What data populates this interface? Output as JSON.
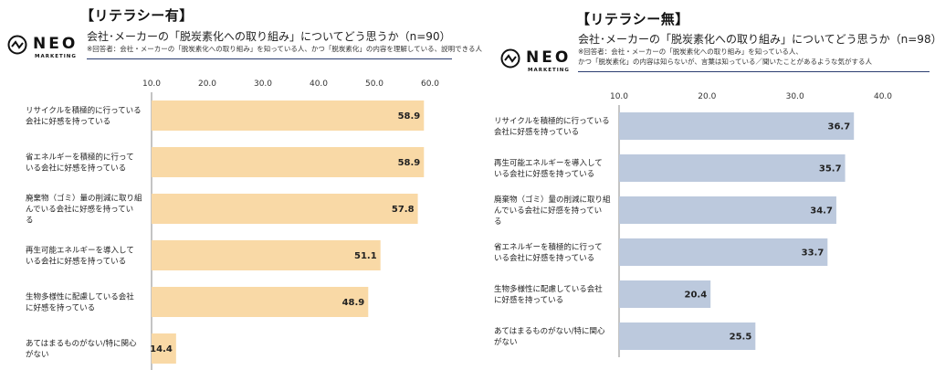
{
  "left": {
    "section_title": "【リテラシー有】",
    "question": "会社･メーカーの「脱炭素化への取り組み」についてどう思うか（n=90）",
    "note_lines": [
      "※回答者：会社・メーカーの「脱炭素化への取り組み」を知っている人、かつ「脱炭素化」の内容を理解している、説明できる人"
    ],
    "logo": {
      "brand": "NEO",
      "sub": "MARKETING"
    }
  },
  "right": {
    "section_title": "【リテラシー無】",
    "question": "会社･メーカーの「脱炭素化への取り組み」についてどう思うか（n=98）",
    "note_lines": [
      "※回答者：会社・メーカーの「脱炭素化への取り組み」を知っている人、",
      "かつ「脱炭素化」の内容は知らないが、言葉は知っている／聞いたことがあるような気がする人"
    ],
    "logo": {
      "brand": "NEO",
      "sub": "MARKETING"
    }
  },
  "colors": {
    "left_bar": "#f9d9a6",
    "right_bar": "#bcc9dd",
    "rule": "#2c3e70",
    "grid": "#e0e0e0"
  },
  "chart_data": [
    {
      "type": "bar",
      "orientation": "horizontal",
      "title": "【リテラシー有】",
      "categories": [
        "リサイクルを積極的に行っている会社に好感を持っている",
        "省エネルギーを積極的に行っている会社に好感を持っている",
        "廃棄物（ゴミ）量の削減に取り組んでいる会社に好感を持っている",
        "再生可能エネルギーを導入している会社に好感を持っている",
        "生物多様性に配慮している会社に好感を持っている",
        "あてはまるものがない/特に関心がない"
      ],
      "category_lines": [
        [
          "リサイクルを積極的に行っている",
          "会社に好感を持っている"
        ],
        [
          "省エネルギーを積極的に行って",
          "いる会社に好感を持っている"
        ],
        [
          "廃棄物（ゴミ）量の削減に取り組",
          "んでいる会社に好感を持ってい",
          "る"
        ],
        [
          "再生可能エネルギーを導入して",
          "いる会社に好感を持っている"
        ],
        [
          "生物多様性に配慮している会社",
          "に好感を持っている"
        ],
        [
          "あてはまるものがない/特に関心",
          "がない"
        ]
      ],
      "values": [
        58.9,
        58.9,
        57.8,
        51.1,
        48.9,
        14.4
      ],
      "value_labels": [
        "58.9",
        "58.9",
        "57.8",
        "51.1",
        "48.9",
        "14.4"
      ],
      "xlim": [
        10,
        60
      ],
      "ticks": [
        "10.0",
        "20.0",
        "30.0",
        "40.0",
        "50.0",
        "60.0"
      ],
      "tick_values": [
        10,
        20,
        30,
        40,
        50,
        60
      ],
      "axis_position": "top",
      "grid": false
    },
    {
      "type": "bar",
      "orientation": "horizontal",
      "title": "【リテラシー無】",
      "categories": [
        "リサイクルを積極的に行っている会社に好感を持っている",
        "再生可能エネルギーを導入している会社に好感を持っている",
        "廃棄物（ゴミ）量の削減に取り組んでいる会社に好感を持っている",
        "省エネルギーを積極的に行っている会社に好感を持っている",
        "生物多様性に配慮している会社に好感を持っている",
        "あてはまるものがない/特に関心がない"
      ],
      "category_lines": [
        [
          "リサイクルを積極的に行っている",
          "会社に好感を持っている"
        ],
        [
          "再生可能エネルギーを導入して",
          "いる会社に好感を持っている"
        ],
        [
          "廃棄物（ゴミ）量の削減に取り組",
          "んでいる会社に好感を持ってい",
          "る"
        ],
        [
          "省エネルギーを積極的に行って",
          "いる会社に好感を持っている"
        ],
        [
          "生物多様性に配慮している会社",
          "に好感を持っている"
        ],
        [
          "あてはまるものがない/特に関心",
          "がない"
        ]
      ],
      "values": [
        36.7,
        35.7,
        34.7,
        33.7,
        20.4,
        25.5
      ],
      "value_labels": [
        "36.7",
        "35.7",
        "34.7",
        "33.7",
        "20.4",
        "25.5"
      ],
      "xlim": [
        10,
        40
      ],
      "ticks": [
        "10.0",
        "20.0",
        "30.0",
        "40.0"
      ],
      "tick_values": [
        10,
        20,
        30,
        40
      ],
      "axis_position": "top",
      "grid": false
    }
  ]
}
